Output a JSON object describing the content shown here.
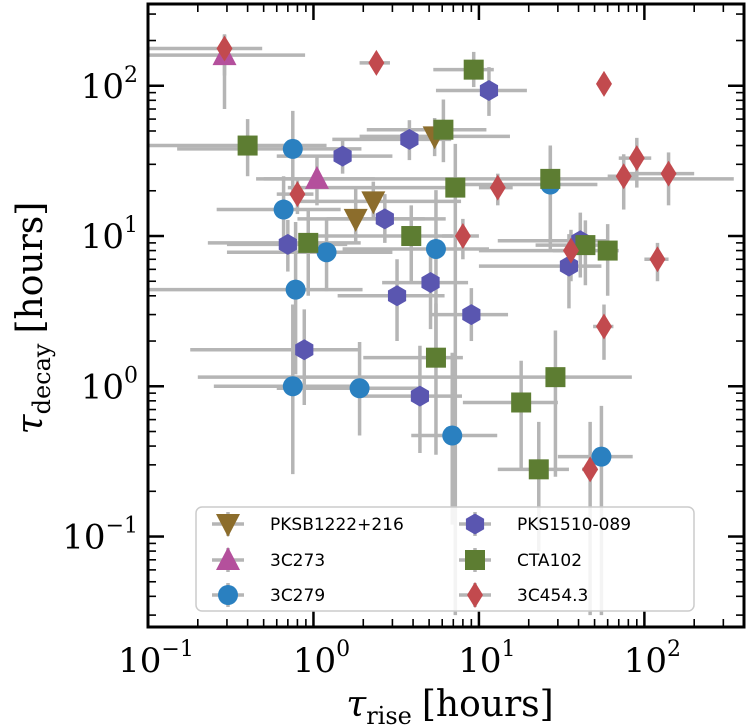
{
  "chart_data": {
    "type": "scatter",
    "xscale": "log",
    "yscale": "log",
    "xlim": [
      0.1,
      400
    ],
    "ylim": [
      0.025,
      350
    ],
    "xlabel": {
      "symbol": "τ",
      "sub": "rise",
      "unit": "[hours]"
    },
    "ylabel": {
      "symbol": "τ",
      "sub": "decay",
      "unit": "[hours]"
    },
    "xticks": [
      {
        "value": 0.1,
        "base": "10",
        "exp": "−1"
      },
      {
        "value": 1,
        "base": "10",
        "exp": "0"
      },
      {
        "value": 10,
        "base": "10",
        "exp": "1"
      },
      {
        "value": 100,
        "base": "10",
        "exp": "2"
      }
    ],
    "yticks": [
      {
        "value": 0.1,
        "base": "10",
        "exp": "−1"
      },
      {
        "value": 1,
        "base": "10",
        "exp": "0"
      },
      {
        "value": 10,
        "base": "10",
        "exp": "1"
      },
      {
        "value": 100,
        "base": "10",
        "exp": "2"
      }
    ],
    "legend_position": "bottom-right",
    "series": [
      {
        "name": "PKSB1222+216",
        "marker": "triangle-down",
        "color": "#8c6d2c",
        "points": [
          {
            "x": 1.8,
            "y": 13,
            "xerr": [
              1.0,
              4.5
            ],
            "yerr": [
              4,
              8
            ]
          },
          {
            "x": 2.3,
            "y": 17,
            "xerr": [
              1.5,
              5.5
            ],
            "yerr": [
              4,
              6
            ]
          },
          {
            "x": 5.4,
            "y": 46,
            "xerr": [
              3.5,
              10
            ],
            "yerr": [
              12,
              15
            ]
          }
        ]
      },
      {
        "name": "3C273",
        "marker": "triangle-up",
        "color": "#b4509c",
        "points": [
          {
            "x": 0.29,
            "y": 160,
            "xerr": [
              0.19,
              0.6
            ],
            "yerr": [
              90,
              60
            ]
          },
          {
            "x": 1.05,
            "y": 24,
            "xerr": [
              0.6,
              1.3
            ],
            "yerr": [
              8,
              10
            ]
          }
        ]
      },
      {
        "name": "3C279",
        "marker": "circle",
        "color": "#2a80c0",
        "points": [
          {
            "x": 0.75,
            "y": 38,
            "xerr": [
              0.6,
              1.2
            ],
            "yerr": [
              18,
              30
            ]
          },
          {
            "x": 0.66,
            "y": 15,
            "xerr": [
              0.4,
              0.8
            ],
            "yerr": [
              6,
              10
            ]
          },
          {
            "x": 0.78,
            "y": 4.4,
            "xerr": [
              0.7,
              1.2
            ],
            "yerr": [
              3.2,
              8
            ]
          },
          {
            "x": 1.2,
            "y": 7.8,
            "xerr": [
              0.9,
              1.8
            ],
            "yerr": [
              3.5,
              5
            ]
          },
          {
            "x": 0.75,
            "y": 1.0,
            "xerr": [
              0.5,
              1.2
            ],
            "yerr": [
              0.74,
              2.5
            ]
          },
          {
            "x": 1.9,
            "y": 0.97,
            "xerr": [
              1.3,
              2.5
            ],
            "yerr": [
              0.5,
              1.0
            ]
          },
          {
            "x": 5.5,
            "y": 8.2,
            "xerr": [
              4.0,
              6.0
            ],
            "yerr": [
              6.5,
              12
            ]
          },
          {
            "x": 6.9,
            "y": 0.47,
            "xerr": [
              3.0,
              6.0
            ],
            "yerr": [
              0.35,
              1.2
            ]
          },
          {
            "x": 27,
            "y": 22,
            "xerr": [
              20,
              25
            ],
            "yerr": [
              14,
              18
            ]
          },
          {
            "x": 55,
            "y": 0.34,
            "xerr": [
              25,
              30
            ],
            "yerr": [
              0.31,
              0.4
            ]
          }
        ]
      },
      {
        "name": "PKS1510-089",
        "marker": "hexagon",
        "color": "#5a56b0",
        "points": [
          {
            "x": 11.5,
            "y": 93,
            "xerr": [
              6,
              8
            ],
            "yerr": [
              30,
              40
            ]
          },
          {
            "x": 3.8,
            "y": 44,
            "xerr": [
              2.5,
              3
            ],
            "yerr": [
              12,
              15
            ]
          },
          {
            "x": 1.5,
            "y": 34,
            "xerr": [
              0.9,
              1.5
            ],
            "yerr": [
              8,
              10
            ]
          },
          {
            "x": 2.7,
            "y": 13,
            "xerr": [
              1.5,
              2.0
            ],
            "yerr": [
              4,
              6
            ]
          },
          {
            "x": 0.7,
            "y": 8.8,
            "xerr": [
              0.4,
              0.9
            ],
            "yerr": [
              3,
              4
            ]
          },
          {
            "x": 3.2,
            "y": 4.0,
            "xerr": [
              1.8,
              3.0
            ],
            "yerr": [
              2.0,
              3.0
            ]
          },
          {
            "x": 5.1,
            "y": 4.9,
            "xerr": [
              2.5,
              3.5
            ],
            "yerr": [
              2.5,
              3.5
            ]
          },
          {
            "x": 9,
            "y": 3.0,
            "xerr": [
              4,
              6
            ],
            "yerr": [
              1,
              1.5
            ]
          },
          {
            "x": 0.88,
            "y": 1.75,
            "xerr": [
              0.7,
              1.0
            ],
            "yerr": [
              1.0,
              1.5
            ]
          },
          {
            "x": 4.4,
            "y": 0.86,
            "xerr": [
              2.5,
              3.5
            ],
            "yerr": [
              0.5,
              1.0
            ]
          },
          {
            "x": 35,
            "y": 6.3,
            "xerr": [
              25,
              20
            ],
            "yerr": [
              3,
              4
            ]
          },
          {
            "x": 41,
            "y": 9.3,
            "xerr": [
              28,
              20
            ],
            "yerr": [
              4,
              5
            ]
          }
        ]
      },
      {
        "name": "CTA102",
        "marker": "square",
        "color": "#5d7d32",
        "points": [
          {
            "x": 9.3,
            "y": 128,
            "xerr": [
              4,
              3
            ],
            "yerr": [
              30,
              40
            ]
          },
          {
            "x": 6.1,
            "y": 51,
            "xerr": [
              4,
              5
            ],
            "yerr": [
              20,
              30
            ]
          },
          {
            "x": 0.4,
            "y": 40,
            "xerr": [
              0.3,
              0.8
            ],
            "yerr": [
              15,
              20
            ]
          },
          {
            "x": 7.2,
            "y": 21,
            "xerr": [
              6.5,
              1
            ],
            "yerr": [
              20.97,
              20
            ]
          },
          {
            "x": 27,
            "y": 24,
            "xerr": [
              26.5,
              320
            ],
            "yerr": [
              15,
              15
            ]
          },
          {
            "x": 3.9,
            "y": 10,
            "xerr": [
              3.0,
              3.0
            ],
            "yerr": [
              5,
              6
            ]
          },
          {
            "x": 0.93,
            "y": 9,
            "xerr": [
              0.7,
              1.0
            ],
            "yerr": [
              5,
              6
            ]
          },
          {
            "x": 44,
            "y": 8.7,
            "xerr": [
              22,
              16
            ],
            "yerr": [
              4,
              4
            ]
          },
          {
            "x": 60,
            "y": 8,
            "xerr": [
              50,
              10
            ],
            "yerr": [
              4,
              4
            ]
          },
          {
            "x": 5.5,
            "y": 1.55,
            "xerr": [
              3.5,
              2.5
            ],
            "yerr": [
              1.2,
              2
            ]
          },
          {
            "x": 29,
            "y": 1.15,
            "xerr": [
              28.8,
              55
            ],
            "yerr": [
              0.9,
              1.2
            ]
          },
          {
            "x": 18,
            "y": 0.78,
            "xerr": [
              10,
              12
            ],
            "yerr": [
              0.5,
              0.7
            ]
          },
          {
            "x": 23,
            "y": 0.28,
            "xerr": [
              10,
              12
            ],
            "yerr": [
              0.2,
              0.3
            ]
          }
        ]
      },
      {
        "name": "3C454.3",
        "marker": "diamond",
        "color": "#c24a4e",
        "points": [
          {
            "x": 0.29,
            "y": 177,
            "xerr": [
              0.2,
              0.2
            ],
            "yerr": [
              60,
              40
            ]
          },
          {
            "x": 2.4,
            "y": 142,
            "xerr": [
              0.5,
              0.5
            ],
            "yerr": [
              20,
              20
            ]
          },
          {
            "x": 57,
            "y": 103,
            "xerr": [
              5,
              5
            ],
            "yerr": [
              15,
              15
            ]
          },
          {
            "x": 90,
            "y": 33,
            "xerr": [
              20,
              20
            ],
            "yerr": [
              12,
              12
            ]
          },
          {
            "x": 75,
            "y": 25,
            "xerr": [
              15,
              15
            ],
            "yerr": [
              10,
              10
            ]
          },
          {
            "x": 140,
            "y": 26,
            "xerr": [
              60,
              60
            ],
            "yerr": [
              10,
              10
            ]
          },
          {
            "x": 0.8,
            "y": 19,
            "xerr": [
              0.2,
              0.2
            ],
            "yerr": [
              5,
              5
            ]
          },
          {
            "x": 13,
            "y": 21,
            "xerr": [
              3,
              3
            ],
            "yerr": [
              5,
              5
            ]
          },
          {
            "x": 8,
            "y": 10,
            "xerr": [
              2,
              2
            ],
            "yerr": [
              3,
              3
            ]
          },
          {
            "x": 36,
            "y": 8,
            "xerr": [
              8,
              8
            ],
            "yerr": [
              3,
              3
            ]
          },
          {
            "x": 120,
            "y": 7,
            "xerr": [
              20,
              20
            ],
            "yerr": [
              2,
              2
            ]
          },
          {
            "x": 57,
            "y": 2.5,
            "xerr": [
              8,
              8
            ],
            "yerr": [
              1,
              1
            ]
          },
          {
            "x": 47,
            "y": 0.28,
            "xerr": [
              5,
              5
            ],
            "yerr": [
              0.25,
              0.3
            ]
          }
        ]
      }
    ]
  }
}
